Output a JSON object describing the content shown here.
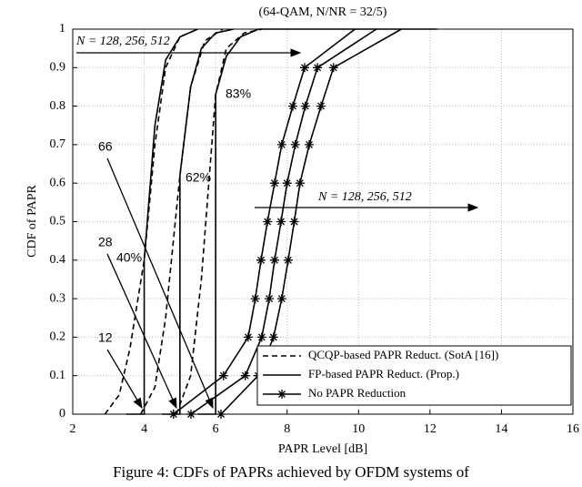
{
  "chart_data": {
    "type": "line",
    "subtitle": "(64-QAM, N/NR = 32/5)",
    "x_label": "PAPR Level [dB]",
    "y_label": "CDF of PAPR",
    "xlim": [
      2,
      16
    ],
    "xticks": [
      2,
      4,
      6,
      8,
      10,
      12,
      14,
      16
    ],
    "ylim": [
      0,
      1
    ],
    "yticks": [
      0,
      0.1,
      0.2,
      0.3,
      0.4,
      0.5,
      0.6,
      0.7,
      0.8,
      0.9,
      1
    ],
    "grid": true,
    "legend": "lower right",
    "annotations": [
      "N = 128, 256, 512",
      "N = 128, 256, 512",
      "66",
      "28",
      "12",
      "40%",
      "62%",
      "83%"
    ],
    "series": [
      {
        "name": "QCQP-based PAPR Reduct. (SotA [16])",
        "color": "#000000",
        "dash": "dashed",
        "marker": "none",
        "curves": [
          {
            "x": [
              2.9,
              3.3,
              3.6,
              4,
              4.3,
              4.6,
              5,
              5.5
            ],
            "values": [
              0,
              0.05,
              0.17,
              0.4,
              0.7,
              0.9,
              0.98,
              1
            ]
          },
          {
            "x": [
              3.9,
              4.3,
              4.6,
              5,
              5.3,
              5.7,
              6.2
            ],
            "values": [
              0,
              0.07,
              0.25,
              0.62,
              0.85,
              0.97,
              1
            ]
          },
          {
            "x": [
              4.9,
              5.3,
              5.6,
              6,
              6.3,
              6.8,
              7.3
            ],
            "values": [
              0,
              0.1,
              0.35,
              0.83,
              0.95,
              0.99,
              1
            ]
          }
        ]
      },
      {
        "name": "FP-based PAPR Reduct. (Prop.)",
        "color": "#000000",
        "dash": "solid",
        "marker": "none",
        "curves": [
          {
            "x": [
              3.5,
              4,
              4,
              4.3,
              4.6,
              5,
              5.5
            ],
            "values": [
              0,
              0,
              0.4,
              0.75,
              0.92,
              0.98,
              1
            ]
          },
          {
            "x": [
              4.5,
              5,
              5,
              5.3,
              5.6,
              6,
              6.5
            ],
            "values": [
              0,
              0,
              0.62,
              0.85,
              0.95,
              0.99,
              1
            ]
          },
          {
            "x": [
              5.5,
              6,
              6,
              6.3,
              6.7,
              7.2,
              12.2
            ],
            "values": [
              0,
              0,
              0.83,
              0.93,
              0.98,
              1,
              1
            ]
          }
        ]
      },
      {
        "name": "No PAPR Reduction",
        "color": "#000000",
        "dash": "solid",
        "marker": "star",
        "curves": [
          {
            "x": [
              4.82,
              6.22,
              6.91,
              7.11,
              7.27,
              7.45,
              7.65,
              7.85,
              8.16,
              8.49,
              9.9
            ],
            "values": [
              0,
              0.1,
              0.2,
              0.3,
              0.4,
              0.5,
              0.6,
              0.7,
              0.8,
              0.9,
              1
            ]
          },
          {
            "x": [
              5.31,
              6.83,
              7.29,
              7.5,
              7.65,
              7.83,
              8.0,
              8.23,
              8.51,
              8.85,
              10.5
            ],
            "values": [
              0,
              0.1,
              0.2,
              0.3,
              0.4,
              0.5,
              0.6,
              0.7,
              0.8,
              0.9,
              1
            ]
          },
          {
            "x": [
              6.15,
              7.19,
              7.62,
              7.85,
              8.03,
              8.2,
              8.36,
              8.62,
              8.95,
              9.3,
              11.2
            ],
            "values": [
              0,
              0.1,
              0.2,
              0.3,
              0.4,
              0.5,
              0.6,
              0.7,
              0.8,
              0.9,
              1
            ]
          }
        ]
      }
    ]
  },
  "caption": "Figure 4: CDFs of PAPRs achieved by OFDM systems of"
}
